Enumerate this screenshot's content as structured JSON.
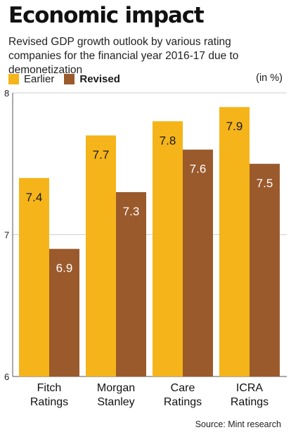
{
  "title": "Economic impact",
  "subtitle": "Revised GDP growth outlook by various rating companies for the financial year 2016-17 due to demonetization",
  "unit": "(in %)",
  "source": "Source: Mint research",
  "colors": {
    "earlier": "#F5B41A",
    "revised": "#9A5A2C",
    "grid": "#cfcfcf",
    "axis": "#555555"
  },
  "chart_data": {
    "type": "bar",
    "categories": [
      [
        "Fitch",
        "Ratings"
      ],
      [
        "Morgan",
        "Stanley"
      ],
      [
        "Care",
        "Ratings"
      ],
      [
        "ICRA",
        "Ratings"
      ]
    ],
    "series": [
      {
        "name": "Earlier",
        "values": [
          7.4,
          7.7,
          7.8,
          7.9
        ]
      },
      {
        "name": "Revised",
        "values": [
          6.9,
          7.3,
          7.6,
          7.5
        ]
      }
    ],
    "ylim": [
      6,
      8
    ],
    "yticks": [
      "6",
      "7",
      "8"
    ],
    "value_labels": [
      [
        "7.4",
        "7.7",
        "7.8",
        "7.9"
      ],
      [
        "6.9",
        "7.3",
        "7.6",
        "7.5"
      ]
    ],
    "legend_position": "top-left",
    "grid": true
  }
}
